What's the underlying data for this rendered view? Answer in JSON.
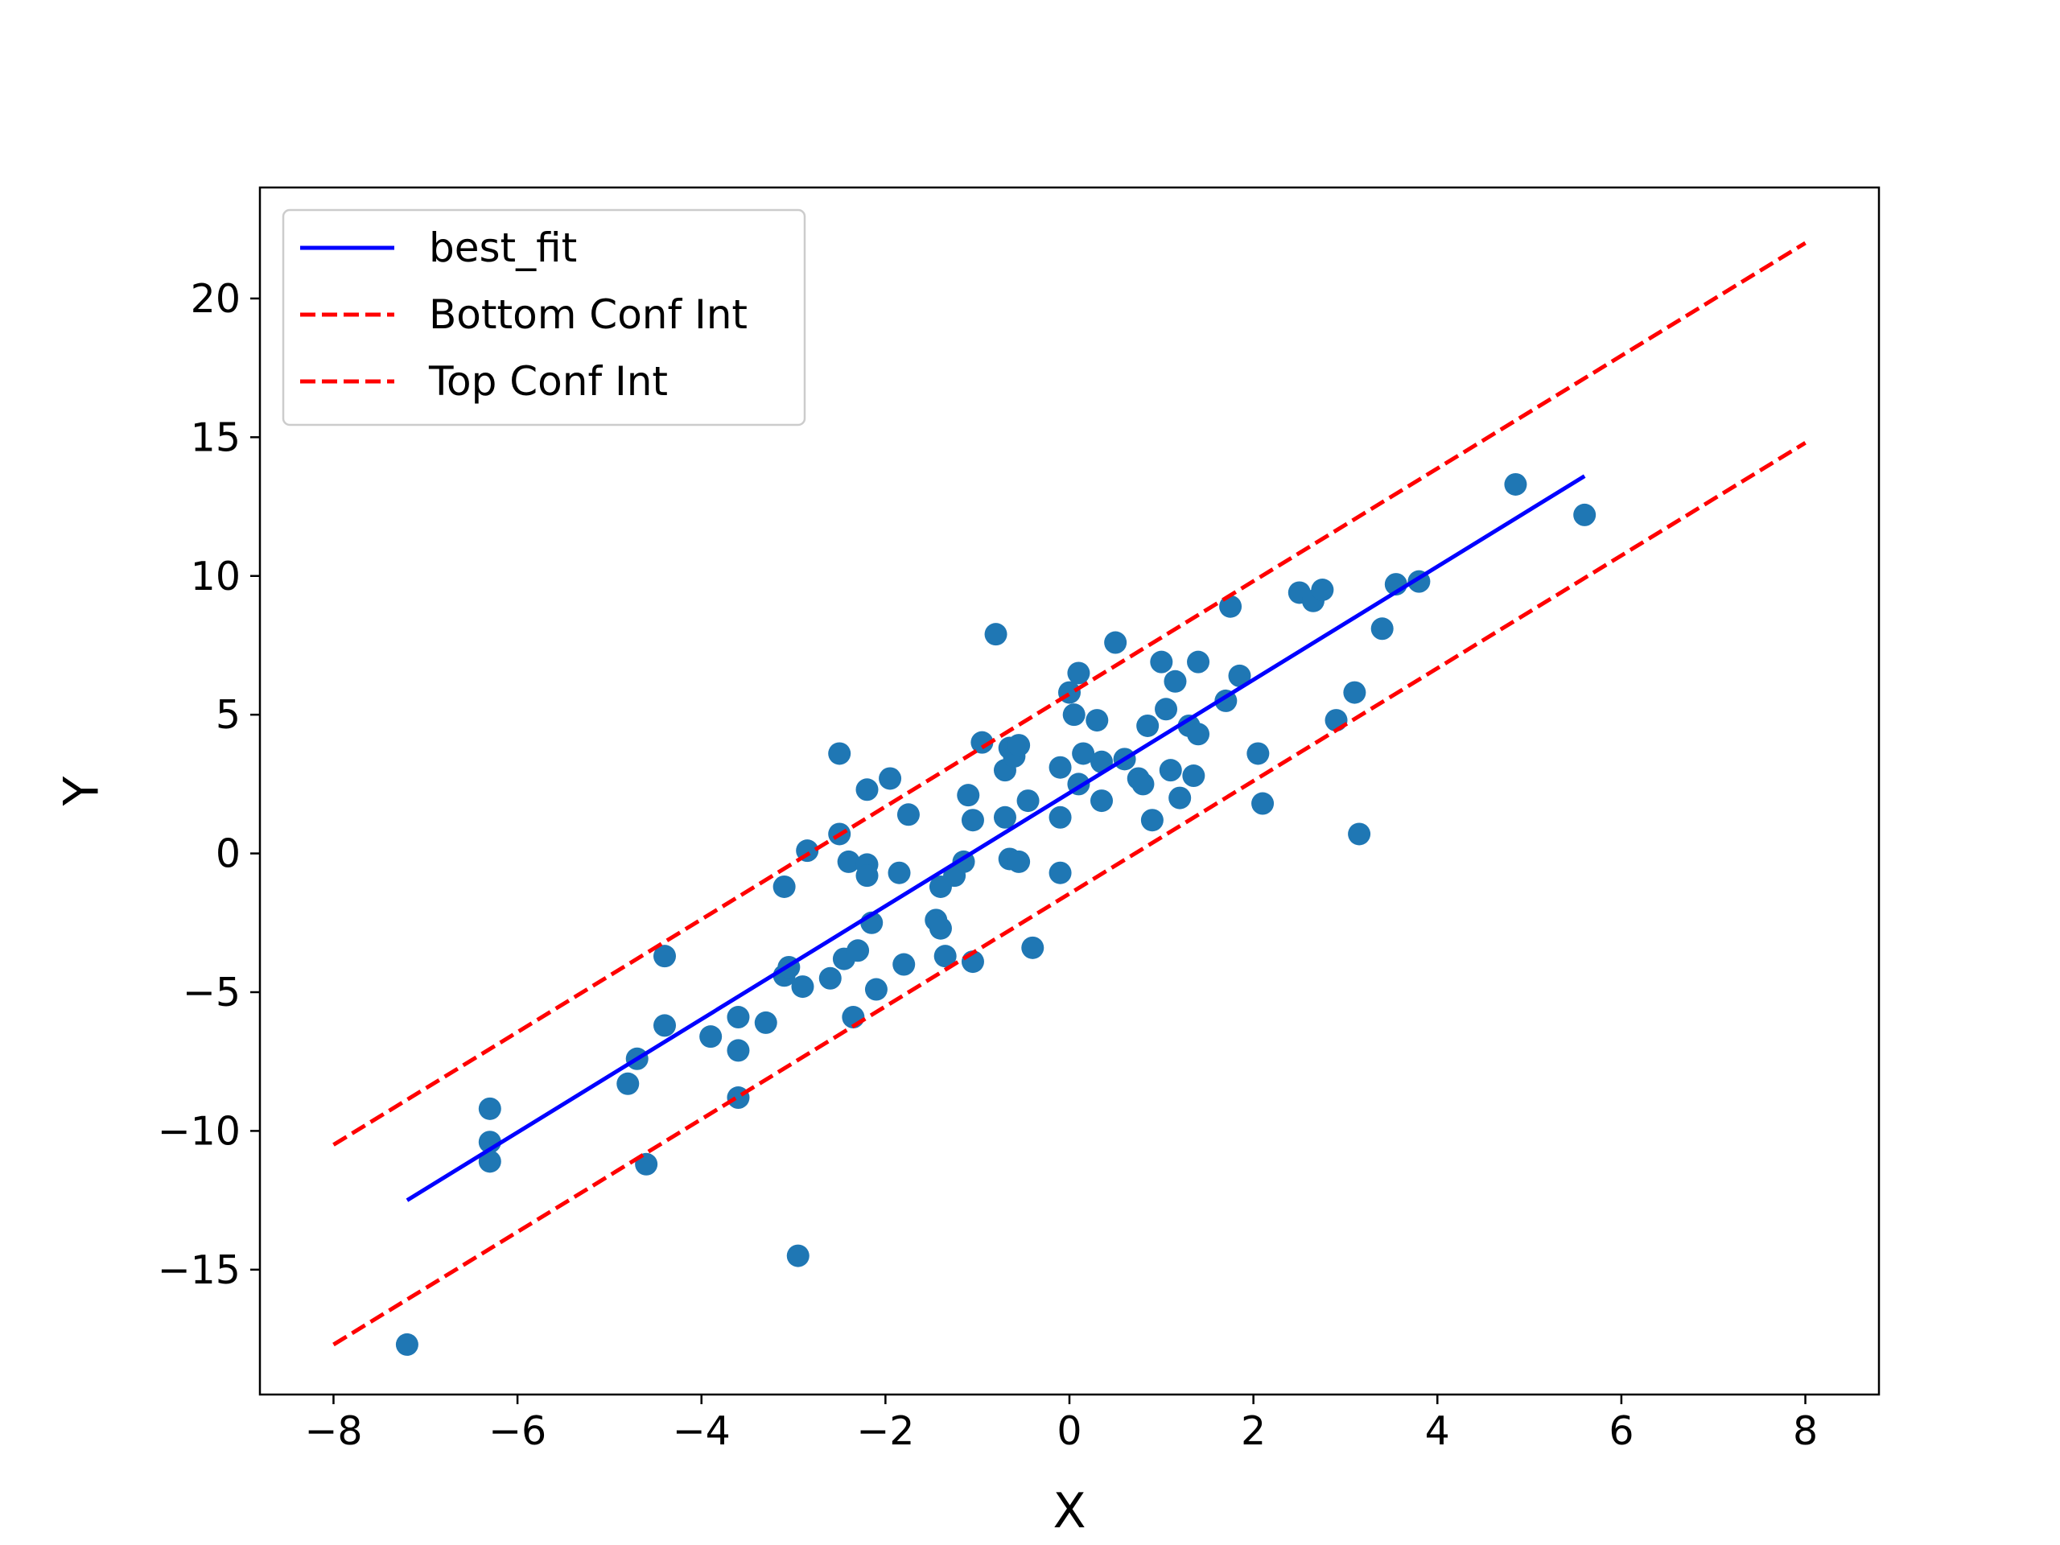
{
  "chart_data": {
    "type": "scatter",
    "title": "",
    "xlabel": "X",
    "ylabel": "Y",
    "xlim": [
      -8.8,
      8.8
    ],
    "ylim": [
      -19.5,
      24
    ],
    "xticks": [
      -8,
      -6,
      -4,
      -2,
      0,
      2,
      4,
      6,
      8
    ],
    "yticks": [
      -15,
      -10,
      -5,
      0,
      5,
      10,
      15,
      20
    ],
    "xtick_labels": [
      "−8",
      "−6",
      "−4",
      "−2",
      "0",
      "2",
      "4",
      "6",
      "8"
    ],
    "ytick_labels": [
      "−15",
      "−10",
      "−5",
      "0",
      "5",
      "10",
      "15",
      "20"
    ],
    "grid": false,
    "legend_position": "upper-left",
    "legend": [
      {
        "label": "best_fit",
        "color": "#0000ff",
        "style": "solid"
      },
      {
        "label": "Bottom Conf Int",
        "color": "#ff0000",
        "style": "dashed"
      },
      {
        "label": "Top Conf Int",
        "color": "#ff0000",
        "style": "dashed"
      }
    ],
    "scatter_color": "#1f77b4",
    "points": [
      [
        -7.2,
        -17.7
      ],
      [
        -6.3,
        -9.2
      ],
      [
        -6.3,
        -10.4
      ],
      [
        -6.3,
        -11.1
      ],
      [
        -4.8,
        -8.3
      ],
      [
        -4.7,
        -7.4
      ],
      [
        -4.6,
        -11.2
      ],
      [
        -4.4,
        -3.7
      ],
      [
        -4.4,
        -6.2
      ],
      [
        -3.9,
        -6.6
      ],
      [
        -3.6,
        -5.9
      ],
      [
        -3.6,
        -7.1
      ],
      [
        -3.6,
        -8.8
      ],
      [
        -3.3,
        -6.1
      ],
      [
        -3.1,
        -1.2
      ],
      [
        -3.1,
        -4.4
      ],
      [
        -3.05,
        -4.1
      ],
      [
        -2.95,
        -14.5
      ],
      [
        -2.9,
        -4.8
      ],
      [
        -2.85,
        0.1
      ],
      [
        -2.6,
        -4.5
      ],
      [
        -2.5,
        0.7
      ],
      [
        -2.5,
        3.6
      ],
      [
        -2.45,
        -3.8
      ],
      [
        -2.4,
        -0.3
      ],
      [
        -2.35,
        -5.9
      ],
      [
        -2.3,
        -3.5
      ],
      [
        -2.2,
        2.3
      ],
      [
        -2.2,
        -0.4
      ],
      [
        -2.2,
        -0.8
      ],
      [
        -2.15,
        -2.5
      ],
      [
        -2.1,
        -4.9
      ],
      [
        -1.95,
        2.7
      ],
      [
        -1.85,
        -0.7
      ],
      [
        -1.8,
        -4.0
      ],
      [
        -1.75,
        1.4
      ],
      [
        -1.45,
        -2.4
      ],
      [
        -1.4,
        -2.7
      ],
      [
        -1.4,
        -1.2
      ],
      [
        -1.35,
        -3.7
      ],
      [
        -1.25,
        -0.8
      ],
      [
        -1.15,
        -0.3
      ],
      [
        -1.1,
        2.1
      ],
      [
        -1.05,
        1.2
      ],
      [
        -1.05,
        -3.9
      ],
      [
        -0.95,
        4.0
      ],
      [
        -0.8,
        7.9
      ],
      [
        -0.7,
        3.0
      ],
      [
        -0.7,
        1.3
      ],
      [
        -0.65,
        -0.2
      ],
      [
        -0.65,
        3.8
      ],
      [
        -0.6,
        3.5
      ],
      [
        -0.55,
        3.9
      ],
      [
        -0.55,
        -0.3
      ],
      [
        -0.45,
        1.9
      ],
      [
        -0.4,
        -3.4
      ],
      [
        -0.1,
        3.1
      ],
      [
        -0.1,
        1.3
      ],
      [
        -0.1,
        -0.7
      ],
      [
        0.0,
        5.8
      ],
      [
        0.05,
        5.0
      ],
      [
        0.1,
        6.5
      ],
      [
        0.1,
        2.5
      ],
      [
        0.15,
        3.6
      ],
      [
        0.3,
        4.8
      ],
      [
        0.35,
        3.3
      ],
      [
        0.35,
        1.9
      ],
      [
        0.5,
        7.6
      ],
      [
        0.6,
        3.4
      ],
      [
        0.75,
        2.7
      ],
      [
        0.8,
        2.5
      ],
      [
        0.85,
        4.6
      ],
      [
        0.9,
        1.2
      ],
      [
        1.0,
        6.9
      ],
      [
        1.05,
        5.2
      ],
      [
        1.1,
        3.0
      ],
      [
        1.15,
        6.2
      ],
      [
        1.2,
        2.0
      ],
      [
        1.3,
        4.6
      ],
      [
        1.35,
        2.8
      ],
      [
        1.4,
        4.3
      ],
      [
        1.4,
        6.9
      ],
      [
        1.7,
        5.5
      ],
      [
        1.75,
        8.9
      ],
      [
        1.85,
        6.4
      ],
      [
        2.05,
        3.6
      ],
      [
        2.1,
        1.8
      ],
      [
        2.5,
        9.4
      ],
      [
        2.65,
        9.1
      ],
      [
        2.75,
        9.5
      ],
      [
        2.9,
        4.8
      ],
      [
        3.1,
        5.8
      ],
      [
        3.15,
        0.7
      ],
      [
        3.4,
        8.1
      ],
      [
        3.55,
        9.7
      ],
      [
        3.8,
        9.8
      ],
      [
        4.85,
        13.3
      ],
      [
        5.6,
        12.2
      ]
    ],
    "series": [
      {
        "name": "best_fit",
        "x": [
          -7.2,
          5.6
        ],
        "y": [
          -12.5,
          13.6
        ]
      },
      {
        "name": "Bottom Conf Int",
        "x": [
          -8.0,
          8.0
        ],
        "y": [
          -17.7,
          14.8
        ]
      },
      {
        "name": "Top Conf Int",
        "x": [
          -8.0,
          8.0
        ],
        "y": [
          -10.5,
          22.0
        ]
      }
    ]
  }
}
